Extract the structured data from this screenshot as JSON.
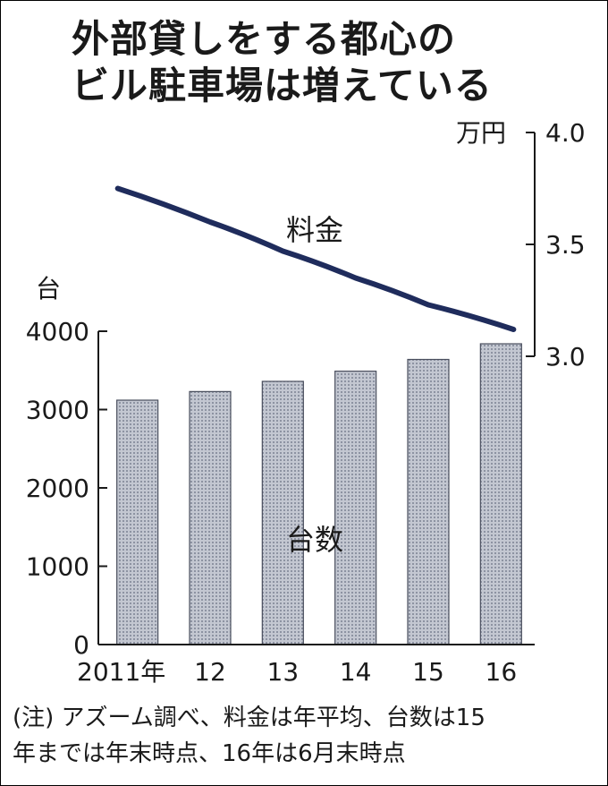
{
  "title_line1": "外部貸しをする都心の",
  "title_line2": "ビル駐車場は増えている",
  "note_line1": "(注) アズーム調べ、料金は年平均、台数は15",
  "note_line2": "年までは年末時点、16年は6月末時点",
  "chart_data": {
    "type": "bar",
    "categories": [
      "2011年",
      "12",
      "13",
      "14",
      "15",
      "16"
    ],
    "series": [
      {
        "name": "台数",
        "type": "bar",
        "axis": "left",
        "values": [
          3120,
          3230,
          3360,
          3490,
          3640,
          3840
        ]
      },
      {
        "name": "料金",
        "type": "line",
        "axis": "right",
        "values": [
          3.75,
          3.6,
          3.47,
          3.35,
          3.23,
          3.12
        ]
      }
    ],
    "y_left": {
      "unit": "台",
      "ylim": [
        0,
        4000
      ],
      "ticks": [
        "0",
        "1000",
        "2000",
        "3000",
        "4000"
      ]
    },
    "y_right": {
      "unit": "万円",
      "ylim": [
        3.0,
        4.0
      ],
      "ticks": [
        "3.0",
        "3.5",
        "4.0"
      ]
    },
    "colors": {
      "bar": "#a9aebc",
      "line": "#1f2c5c",
      "axis": "#1a1a1a"
    }
  }
}
